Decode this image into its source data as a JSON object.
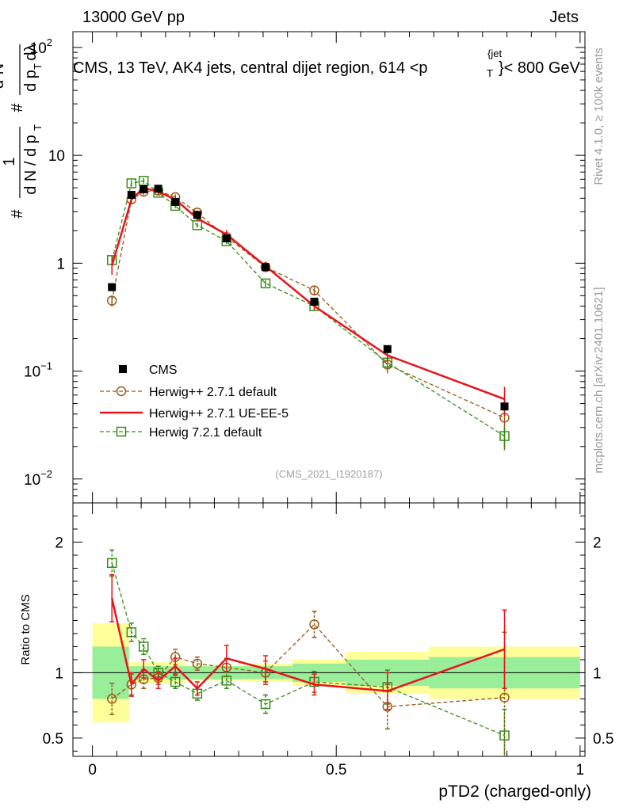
{
  "header": {
    "left": "13000 GeV pp",
    "right": "Jets"
  },
  "plot_title": "CMS, 13 TeV, AK4 jets, central dijet region, 614 <p",
  "plot_title_sup": "{jet",
  "plot_title_sub": "T",
  "plot_title_end": "}< 800 GeV",
  "side_texts": {
    "rivet": "Rivet 4.1.0, ≥ 100k events",
    "mcplots": "mcplots.cern.ch [arXiv:2401.10621]"
  },
  "analysis_id": "(CMS_2021_I1920187)",
  "ylabel_main": {
    "hash1": "#",
    "one": "1",
    "dN": "d N / d p",
    "dN_sub": "T",
    "hash2": "#",
    "d2N": "d²N",
    "dpT": "d p",
    "dpT_sub": "T",
    "dlambda": "dλ"
  },
  "chart_data": {
    "type": "line",
    "xlabel": "pTD2 (charged-only)",
    "ylabel": "1/N dN/dpT d²N/dpT dλ",
    "ratio_ylabel": "Ratio to CMS",
    "xlim": [
      -0.04,
      1.01
    ],
    "ylim_main": [
      0.006,
      140
    ],
    "ylim_ratio": [
      0.36,
      2.3
    ],
    "x_ticks": [
      "0",
      "0.5",
      "1"
    ],
    "x_tick_values": [
      0,
      0.5,
      1
    ],
    "y_ticks_main": [
      {
        "value": 100,
        "base": "10",
        "exp": "2"
      },
      {
        "value": 10,
        "base": "10",
        "exp": ""
      },
      {
        "value": 1,
        "base": "1",
        "exp": ""
      },
      {
        "value": 0.1,
        "base": "10",
        "exp": "−1"
      },
      {
        "value": 0.01,
        "base": "10",
        "exp": "−2"
      }
    ],
    "y_ticks_ratio": [
      {
        "value": 2,
        "label": "2"
      },
      {
        "value": 1,
        "label": "1"
      },
      {
        "value": 0.5,
        "label": "0.5"
      }
    ],
    "bins": [
      {
        "x": 0.04,
        "lo": 0.0,
        "hi": 0.075
      },
      {
        "x": 0.08,
        "lo": 0.075,
        "hi": 0.09
      },
      {
        "x": 0.105,
        "lo": 0.09,
        "hi": 0.12
      },
      {
        "x": 0.135,
        "lo": 0.12,
        "hi": 0.15
      },
      {
        "x": 0.17,
        "lo": 0.15,
        "hi": 0.19
      },
      {
        "x": 0.215,
        "lo": 0.19,
        "hi": 0.24
      },
      {
        "x": 0.275,
        "lo": 0.24,
        "hi": 0.31
      },
      {
        "x": 0.355,
        "lo": 0.31,
        "hi": 0.41
      },
      {
        "x": 0.455,
        "lo": 0.41,
        "hi": 0.52
      },
      {
        "x": 0.605,
        "lo": 0.52,
        "hi": 0.69
      },
      {
        "x": 0.845,
        "lo": 0.69,
        "hi": 1.0
      }
    ],
    "data_band_inner": [
      0.2,
      0.05,
      0.05,
      0.05,
      0.05,
      0.05,
      0.05,
      0.05,
      0.07,
      0.1,
      0.12
    ],
    "data_band_outer": [
      0.38,
      0.08,
      0.08,
      0.08,
      0.08,
      0.06,
      0.06,
      0.07,
      0.1,
      0.16,
      0.2
    ],
    "series": [
      {
        "name": "CMS",
        "color": "#000000",
        "marker": "square-filled",
        "values": [
          0.6,
          4.3,
          4.85,
          4.9,
          3.7,
          2.8,
          1.7,
          0.92,
          0.44,
          0.16,
          0.047
        ]
      },
      {
        "name": "Herwig++ 2.7.1 default",
        "color": "#9a5a1a",
        "marker": "circle-open",
        "dash": true,
        "values": [
          0.45,
          3.9,
          4.6,
          4.7,
          4.1,
          2.95,
          1.75,
          0.92,
          0.56,
          0.115,
          0.037
        ],
        "ratio": [
          0.8,
          0.91,
          0.95,
          0.96,
          1.12,
          1.07,
          1.04,
          1.0,
          1.37,
          0.74,
          0.81
        ],
        "ratio_err": [
          0.12,
          0.08,
          0.07,
          0.05,
          0.06,
          0.05,
          0.07,
          0.09,
          0.1,
          0.17,
          0.5
        ]
      },
      {
        "name": "Herwig++ 2.7.1 UE-EE-5",
        "color": "#e8141c",
        "marker": "line",
        "dash": false,
        "values": [
          0.95,
          3.9,
          5.0,
          4.6,
          3.9,
          2.6,
          1.85,
          0.94,
          0.4,
          0.14,
          0.055
        ],
        "ratio": [
          1.57,
          0.91,
          1.03,
          0.94,
          1.05,
          0.88,
          1.11,
          1.03,
          0.91,
          0.86,
          1.18
        ],
        "ratio_err": [
          0.18,
          0.09,
          0.07,
          0.06,
          0.06,
          0.05,
          0.1,
          0.1,
          0.08,
          0.14,
          0.3
        ]
      },
      {
        "name": "Herwig 7.2.1 default",
        "color": "#3a8a1a",
        "marker": "square-open",
        "dash": true,
        "values": [
          1.07,
          5.5,
          5.8,
          4.5,
          3.4,
          2.25,
          1.6,
          0.65,
          0.4,
          0.12,
          0.025
        ],
        "ratio": [
          1.84,
          1.31,
          1.2,
          1.0,
          0.93,
          0.84,
          0.94,
          0.76,
          0.93,
          0.89,
          0.52
        ],
        "ratio_err": [
          0.1,
          0.07,
          0.06,
          0.05,
          0.05,
          0.05,
          0.06,
          0.07,
          0.08,
          0.13,
          0.2
        ]
      }
    ],
    "legend_placement": "lower-left"
  }
}
